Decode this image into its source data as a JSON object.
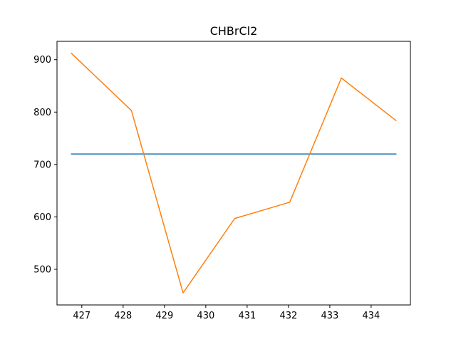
{
  "chart_data": {
    "type": "line",
    "title": "CHBrCl2",
    "xlabel": "",
    "ylabel": "",
    "xlim": [
      426.4,
      434.95
    ],
    "ylim": [
      432,
      935
    ],
    "xticks": [
      427,
      428,
      429,
      430,
      431,
      432,
      433,
      434
    ],
    "yticks": [
      500,
      600,
      700,
      800,
      900
    ],
    "grid": false,
    "series": [
      {
        "color": "#1f77b4",
        "x": [
          426.75,
          434.6
        ],
        "y": [
          720,
          720
        ]
      },
      {
        "color": "#ff7f0e",
        "x": [
          426.75,
          428.2,
          429.45,
          430.7,
          432.03,
          433.28,
          434.6
        ],
        "y": [
          912,
          803,
          455,
          597,
          628,
          865,
          784
        ]
      }
    ]
  }
}
